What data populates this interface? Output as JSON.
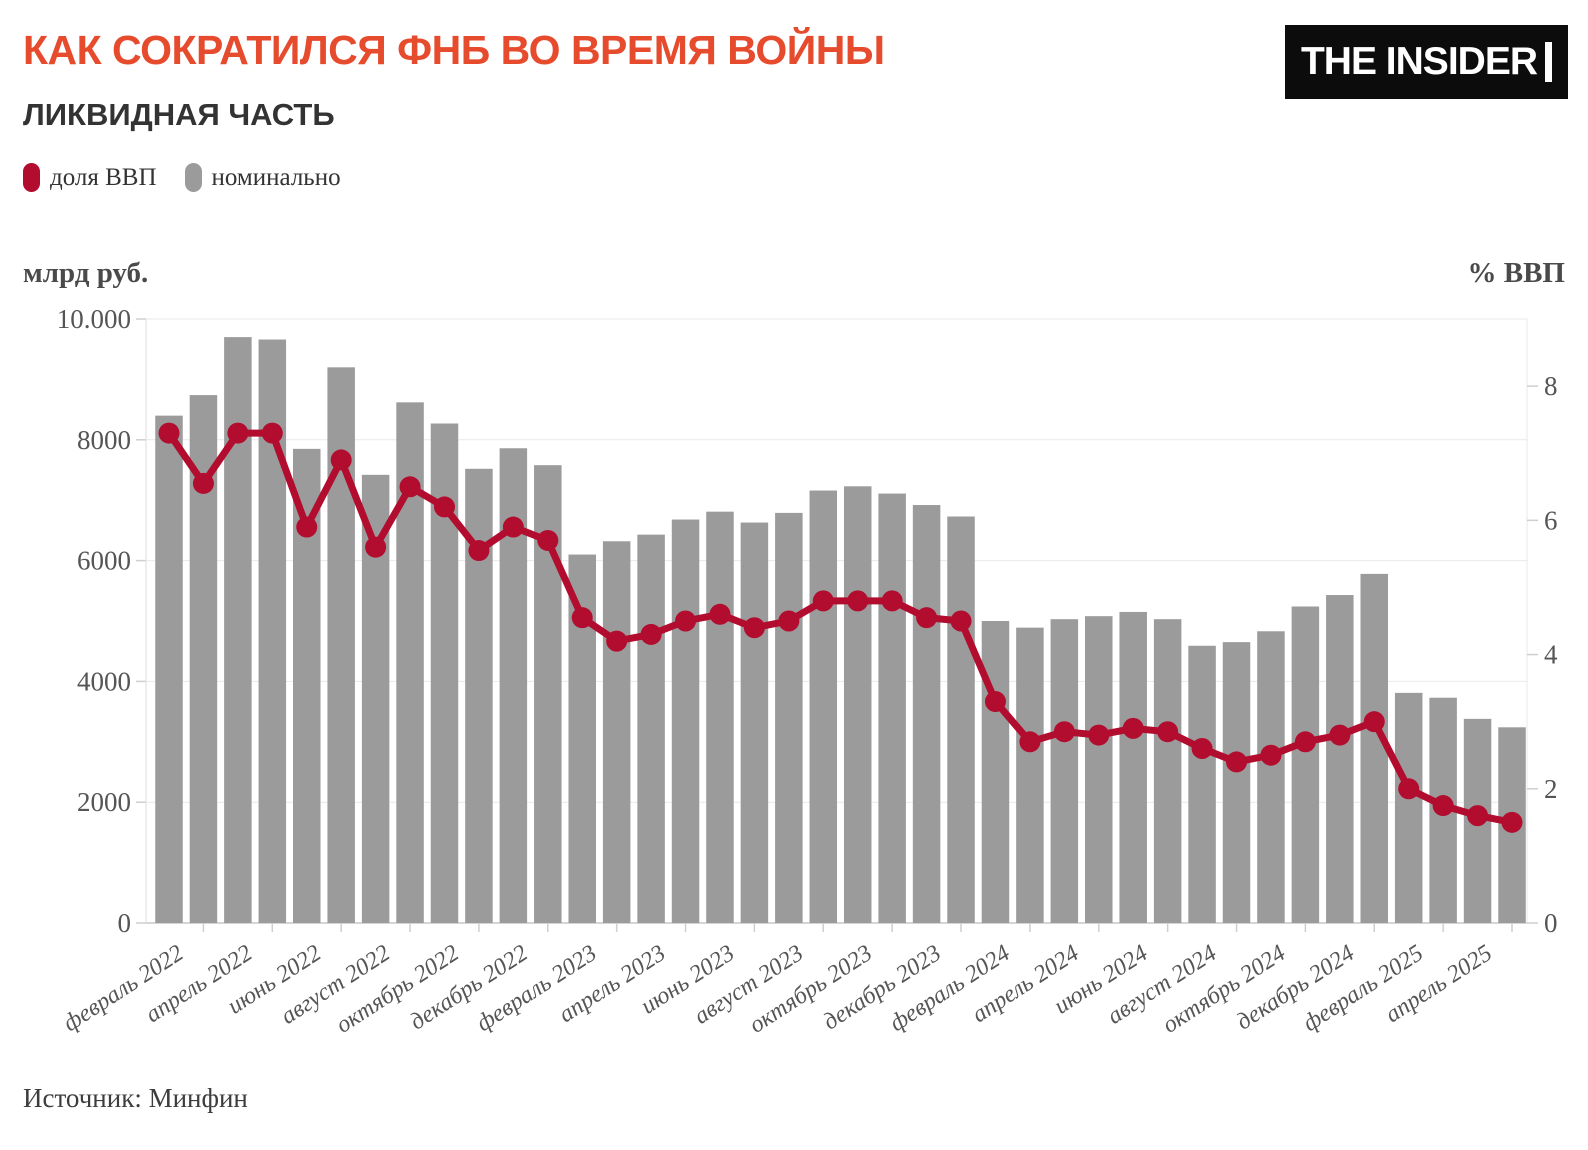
{
  "header": {
    "title": "КАК СОКРАТИЛСЯ ФНБ ВО ВРЕМЯ ВОЙНЫ",
    "subtitle": "ЛИКВИДНАЯ ЧАСТЬ",
    "logo": "THE INSIDER"
  },
  "legend": [
    {
      "label": "доля ВВП",
      "color": "#b20c2e"
    },
    {
      "label": "номинально",
      "color": "#9b9b9b"
    }
  ],
  "source": "Источник: Минфин",
  "chart_data": {
    "type": "combo-bar-line",
    "title": "КАК СОКРАТИЛСЯ ФНБ ВО ВРЕМЯ ВОЙНЫ — ЛИКВИДНАЯ ЧАСТЬ",
    "grid": true,
    "legend_position": "top-left",
    "categories": [
      "февраль 2022",
      "март 2022",
      "апрель 2022",
      "май 2022",
      "июнь 2022",
      "июль 2022",
      "август 2022",
      "сентябрь 2022",
      "октябрь 2022",
      "ноябрь 2022",
      "декабрь 2022",
      "январь 2023",
      "февраль 2023",
      "март 2023",
      "апрель 2023",
      "май 2023",
      "июнь 2023",
      "июль 2023",
      "август 2023",
      "сентябрь 2023",
      "октябрь 2023",
      "ноябрь 2023",
      "декабрь 2023",
      "январь 2024",
      "февраль 2024",
      "март 2024",
      "апрель 2024",
      "май 2024",
      "июнь 2024",
      "июль 2024",
      "август 2024",
      "сентябрь 2024",
      "октябрь 2024",
      "ноябрь 2024",
      "декабрь 2024",
      "январь 2025",
      "февраль 2025",
      "март 2025",
      "апрель 2025",
      "май 2025"
    ],
    "x_tick_labels": [
      "февраль 2022",
      "апрель 2022",
      "июнь 2022",
      "август 2022",
      "октябрь 2022",
      "декабрь 2022",
      "февраль 2023",
      "апрель 2023",
      "июнь 2023",
      "август 2023",
      "октябрь 2023",
      "декабрь 2023",
      "февраль 2024",
      "апрель 2024",
      "июнь 2024",
      "август 2024",
      "октябрь 2024",
      "декабрь 2024",
      "февраль 2025",
      "апрель 2025"
    ],
    "left_axis": {
      "label": "млрд руб.",
      "range": [
        0,
        10000
      ],
      "ticks": [
        0,
        2000,
        4000,
        6000,
        8000,
        10000
      ],
      "tick_labels": [
        "0",
        "2000",
        "4000",
        "6000",
        "8000",
        "10.000"
      ]
    },
    "right_axis": {
      "label": "% ВВП",
      "range": [
        0,
        9
      ],
      "ticks": [
        0,
        2,
        4,
        6,
        8
      ]
    },
    "series": [
      {
        "name": "номинально",
        "type": "bar",
        "axis": "left",
        "unit": "млрд руб.",
        "color": "#9b9b9b",
        "values": [
          8400,
          8740,
          9700,
          9660,
          7850,
          9200,
          7420,
          8620,
          8270,
          7520,
          7860,
          7580,
          6100,
          6320,
          6430,
          6680,
          6810,
          6630,
          6790,
          7160,
          7230,
          7110,
          6920,
          6730,
          5000,
          4890,
          5030,
          5080,
          5150,
          5030,
          4590,
          4650,
          4830,
          5240,
          5430,
          5780,
          3810,
          3730,
          3380,
          3240
        ]
      },
      {
        "name": "доля ВВП",
        "type": "line",
        "axis": "right",
        "unit": "% ВВП",
        "color": "#b20c2e",
        "values": [
          7.3,
          6.55,
          7.3,
          7.3,
          5.9,
          6.9,
          5.6,
          6.5,
          6.2,
          5.55,
          5.9,
          5.7,
          4.55,
          4.2,
          4.3,
          4.5,
          4.6,
          4.4,
          4.5,
          4.8,
          4.8,
          4.8,
          4.55,
          4.5,
          3.3,
          2.7,
          2.85,
          2.8,
          2.9,
          2.85,
          2.6,
          2.4,
          2.5,
          2.7,
          2.8,
          3.0,
          2.0,
          1.75,
          1.6,
          1.5
        ]
      }
    ]
  }
}
